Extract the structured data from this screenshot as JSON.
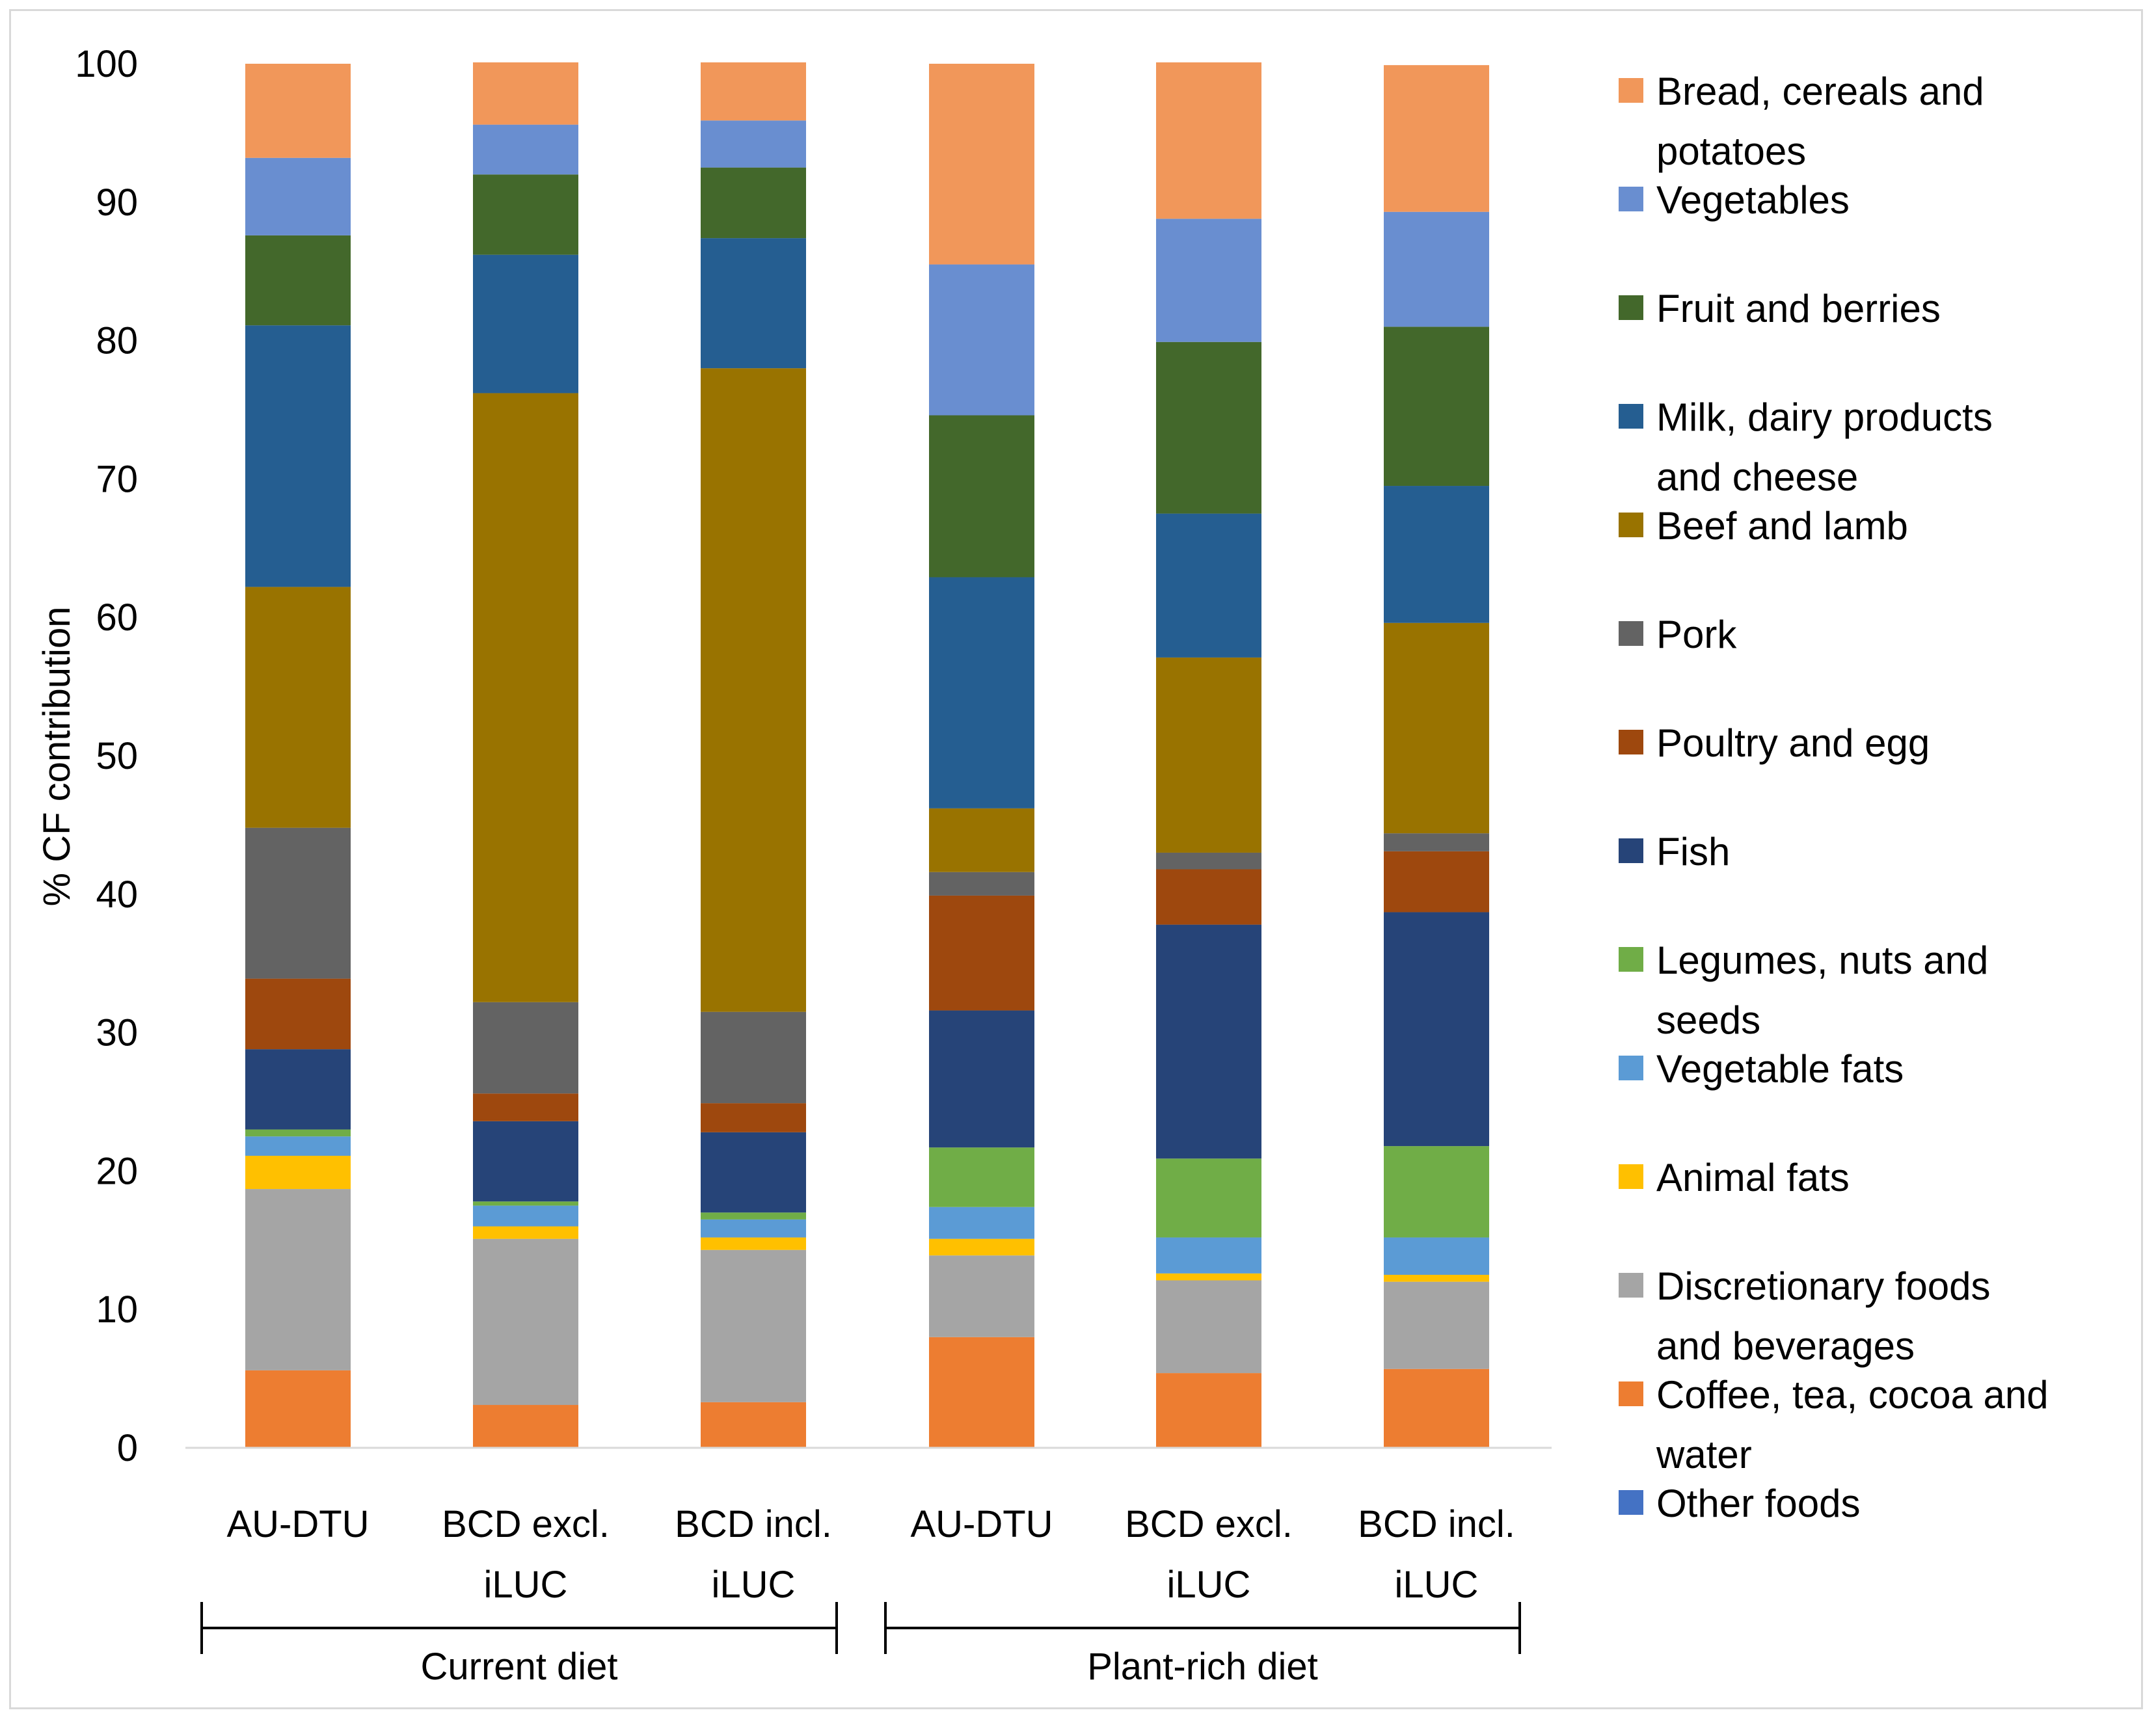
{
  "chart_data": {
    "type": "bar",
    "stacked": true,
    "ylabel": "% CF contribution",
    "ylim": [
      0,
      100
    ],
    "yticks": [
      0,
      10,
      20,
      30,
      40,
      50,
      60,
      70,
      80,
      90,
      100
    ],
    "gridlines": false,
    "legend_position": "right",
    "categories": [
      [
        "AU-DTU"
      ],
      [
        "BCD excl.",
        "iLUC"
      ],
      [
        "BCD incl.",
        "iLUC"
      ],
      [
        "AU-DTU"
      ],
      [
        "BCD excl.",
        "iLUC"
      ],
      [
        "BCD incl.",
        "iLUC"
      ]
    ],
    "groups": [
      {
        "label": "Current diet",
        "from": 0,
        "to": 2
      },
      {
        "label": "Plant-rich diet",
        "from": 3,
        "to": 5
      }
    ],
    "series": [
      {
        "name": "Other foods",
        "legend_lines": [
          "Other foods"
        ],
        "color": "#4472C4",
        "values": [
          0,
          0,
          0,
          0,
          0,
          0
        ]
      },
      {
        "name": "Coffee, tea, cocoa and water",
        "legend_lines": [
          "Coffee, tea, cocoa and",
          "water"
        ],
        "color": "#ED7D31",
        "values": [
          5.6,
          3.1,
          3.3,
          8.0,
          5.4,
          5.7
        ]
      },
      {
        "name": "Discretionary foods and beverages",
        "legend_lines": [
          "Discretionary foods",
          "and beverages"
        ],
        "color": "#A5A5A5",
        "values": [
          13.1,
          12.0,
          11.0,
          5.9,
          6.7,
          6.3
        ]
      },
      {
        "name": "Animal fats",
        "legend_lines": [
          "Animal fats"
        ],
        "color": "#FFC000",
        "values": [
          2.4,
          0.9,
          0.9,
          1.2,
          0.5,
          0.5
        ]
      },
      {
        "name": "Vegetable fats",
        "legend_lines": [
          "Vegetable fats"
        ],
        "color": "#5B9BD5",
        "values": [
          1.4,
          1.5,
          1.3,
          2.3,
          2.6,
          2.7
        ]
      },
      {
        "name": "Legumes, nuts and seeds",
        "legend_lines": [
          "Legumes, nuts and",
          "seeds"
        ],
        "color": "#70AD47",
        "values": [
          0.5,
          0.3,
          0.5,
          4.3,
          5.7,
          6.6
        ]
      },
      {
        "name": "Fish",
        "legend_lines": [
          "Fish"
        ],
        "color": "#264478",
        "values": [
          5.8,
          5.8,
          5.8,
          9.9,
          16.9,
          16.9
        ]
      },
      {
        "name": "Poultry and egg",
        "legend_lines": [
          "Poultry and egg"
        ],
        "color": "#9E480E",
        "values": [
          5.1,
          2.0,
          2.1,
          8.3,
          4.0,
          4.4
        ]
      },
      {
        "name": "Pork",
        "legend_lines": [
          "Pork"
        ],
        "color": "#636363",
        "values": [
          10.9,
          6.6,
          6.6,
          1.7,
          1.2,
          1.3
        ]
      },
      {
        "name": "Beef and lamb",
        "legend_lines": [
          "Beef and lamb"
        ],
        "color": "#997300",
        "values": [
          17.4,
          44.0,
          46.5,
          4.6,
          14.1,
          15.2
        ]
      },
      {
        "name": "Milk, dairy products and cheese",
        "legend_lines": [
          "Milk, dairy products",
          "and cheese"
        ],
        "color": "#255E91",
        "values": [
          18.9,
          10.0,
          9.4,
          16.7,
          10.4,
          9.9
        ]
      },
      {
        "name": "Fruit and berries",
        "legend_lines": [
          "Fruit and berries"
        ],
        "color": "#43682B",
        "values": [
          6.5,
          5.8,
          5.1,
          11.7,
          12.4,
          11.5
        ]
      },
      {
        "name": "Vegetables",
        "legend_lines": [
          "Vegetables"
        ],
        "color": "#698ED0",
        "values": [
          5.6,
          3.6,
          3.4,
          10.9,
          8.9,
          8.3
        ]
      },
      {
        "name": "Bread, cereals and potatoes",
        "legend_lines": [
          "Bread, cereals and",
          "potatoes"
        ],
        "color": "#F1975A",
        "values": [
          6.8,
          4.5,
          4.2,
          14.5,
          11.3,
          10.6
        ]
      }
    ]
  }
}
